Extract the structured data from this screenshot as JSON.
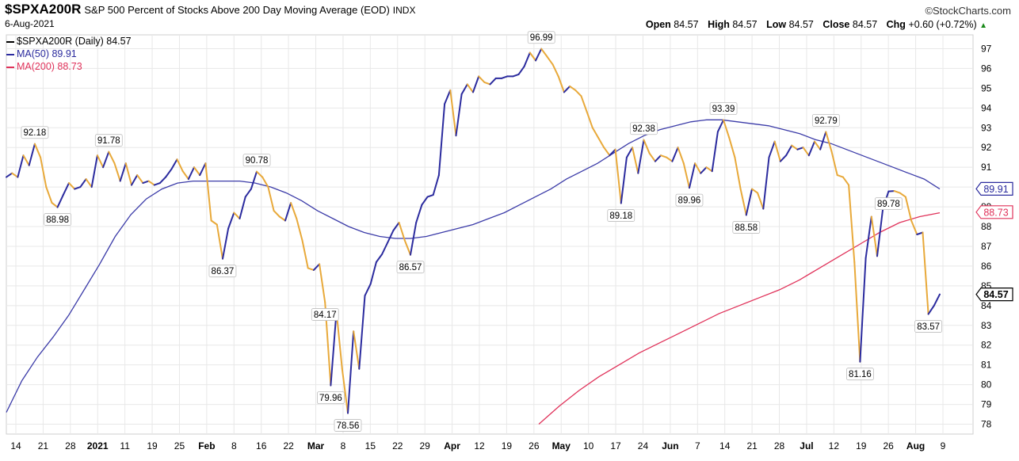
{
  "header": {
    "symbol": "$SPXA200R",
    "description": "S&P 500 Percent of Stocks Above 200 Day Moving Average (EOD)",
    "exchange": "INDX",
    "date": "6-Aug-2021",
    "brand": "©StockCharts.com",
    "open_label": "Open",
    "open_value": "84.57",
    "high_label": "High",
    "high_value": "84.57",
    "low_label": "Low",
    "low_value": "84.57",
    "close_label": "Close",
    "close_value": "84.57",
    "chg_label": "Chg",
    "chg_value": "+0.60 (+0.72%)",
    "chg_arrow": "▲"
  },
  "legend": [
    {
      "text": "$SPXA200R (Daily) 84.57",
      "color": "#000000"
    },
    {
      "text": "MA(50) 89.91",
      "color": "#2b2b9e"
    },
    {
      "text": "MA(200) 88.73",
      "color": "#e0325a"
    }
  ],
  "colors": {
    "up": "#2b2b9e",
    "down": "#e8a93a",
    "ma50": "#3b3ba8",
    "ma200": "#e0325a",
    "grid": "#e8e8e8"
  },
  "chart_data": {
    "type": "line",
    "ylim": [
      77.5,
      97.7
    ],
    "ytick_labels": [
      "78",
      "79",
      "80",
      "81",
      "82",
      "83",
      "84",
      "85",
      "86",
      "87",
      "88",
      "89",
      "90",
      "91",
      "92",
      "93",
      "94",
      "95",
      "96",
      "97"
    ],
    "xtick_labels": [
      "14",
      "21",
      "28",
      "2021",
      "11",
      "19",
      "25",
      "Feb",
      "8",
      "16",
      "22",
      "Mar",
      "8",
      "15",
      "22",
      "29",
      "Apr",
      "12",
      "19",
      "26",
      "May",
      "10",
      "17",
      "24",
      "Jun",
      "7",
      "14",
      "21",
      "28",
      "Jul",
      "12",
      "19",
      "26",
      "Aug",
      "9"
    ],
    "price_tags": [
      {
        "label": "89.91",
        "value": 89.91,
        "color": "#2b2b9e"
      },
      {
        "label": "88.73",
        "value": 88.73,
        "color": "#e0325a"
      },
      {
        "label": "84.57",
        "value": 84.57,
        "color": "#000000"
      }
    ],
    "series": [
      {
        "values": [
          90.5,
          90.7,
          90.5,
          91.6,
          91.1,
          92.18,
          91.5,
          90.0,
          89.2,
          88.98,
          89.6,
          90.2,
          89.9,
          90.0,
          90.4,
          90.0,
          91.6,
          91.0,
          91.78,
          91.2,
          90.3,
          91.2,
          90.1,
          90.6,
          90.2,
          90.3,
          90.1,
          90.2,
          90.5,
          90.9,
          91.4,
          90.8,
          90.4,
          91.0,
          90.6,
          91.2,
          88.3,
          88.1,
          86.37,
          87.9,
          88.7,
          88.4,
          89.5,
          89.9,
          90.78,
          90.5,
          90.0,
          88.8,
          88.5,
          88.3,
          89.2,
          88.4,
          87.3,
          85.9,
          85.8,
          86.1,
          84.17,
          79.96,
          83.7,
          80.8,
          78.56,
          82.7,
          80.8,
          84.5,
          85.1,
          86.2,
          86.6,
          87.2,
          87.8,
          88.2,
          87.3,
          86.57,
          88.2,
          89.1,
          89.5,
          89.6,
          90.6,
          94.2,
          94.9,
          92.6,
          94.7,
          95.2,
          94.8,
          95.6,
          95.3,
          95.2,
          95.5,
          95.5,
          95.6,
          95.6,
          95.7,
          96.1,
          96.8,
          96.4,
          96.99,
          96.6,
          96.2,
          95.6,
          94.8,
          95.1,
          94.9,
          94.6,
          93.8,
          93.0,
          92.5,
          92.0,
          91.6,
          91.9,
          89.18,
          91.5,
          92.0,
          90.7,
          92.38,
          91.7,
          91.3,
          91.6,
          91.5,
          91.3,
          92.0,
          91.2,
          89.96,
          91.2,
          90.7,
          91.0,
          90.8,
          92.8,
          93.39,
          92.5,
          91.5,
          89.9,
          88.58,
          89.9,
          89.7,
          88.9,
          91.5,
          92.3,
          91.3,
          91.6,
          92.1,
          91.9,
          92.0,
          91.6,
          92.3,
          91.9,
          92.79,
          91.8,
          90.6,
          90.5,
          90.1,
          86.2,
          81.16,
          86.4,
          88.5,
          86.5,
          88.9,
          89.78,
          89.8,
          89.7,
          89.5,
          88.3,
          87.6,
          87.7,
          83.57,
          84.0,
          84.57
        ]
      },
      {
        "name": "MA(50)",
        "values": [
          78.6,
          80.2,
          81.4,
          82.4,
          83.5,
          84.8,
          86.1,
          87.5,
          88.6,
          89.4,
          89.9,
          90.2,
          90.3,
          90.3,
          90.3,
          90.3,
          90.2,
          90.0,
          89.7,
          89.3,
          88.8,
          88.4,
          88.0,
          87.7,
          87.5,
          87.4,
          87.4,
          87.5,
          87.7,
          87.9,
          88.1,
          88.4,
          88.7,
          89.1,
          89.5,
          89.9,
          90.4,
          90.8,
          91.2,
          91.7,
          92.2,
          92.6,
          92.9,
          93.1,
          93.3,
          93.4,
          93.4,
          93.3,
          93.2,
          93.1,
          92.9,
          92.7,
          92.4,
          92.2,
          91.9,
          91.6,
          91.3,
          91.0,
          90.7,
          90.4,
          89.9
        ]
      },
      {
        "name": "MA(200)",
        "values": [
          78.0,
          78.9,
          79.7,
          80.4,
          81.0,
          81.6,
          82.1,
          82.6,
          83.1,
          83.6,
          84.0,
          84.4,
          84.8,
          85.3,
          85.9,
          86.5,
          87.1,
          87.7,
          88.2,
          88.5,
          88.7
        ]
      }
    ],
    "annotations": [
      "92.18",
      "88.98",
      "91.78",
      "90.78",
      "86.37",
      "84.17",
      "79.96",
      "78.56",
      "86.57",
      "96.99",
      "89.18",
      "92.38",
      "89.96",
      "93.39",
      "88.58",
      "92.79",
      "81.16",
      "89.78",
      "83.57"
    ]
  }
}
